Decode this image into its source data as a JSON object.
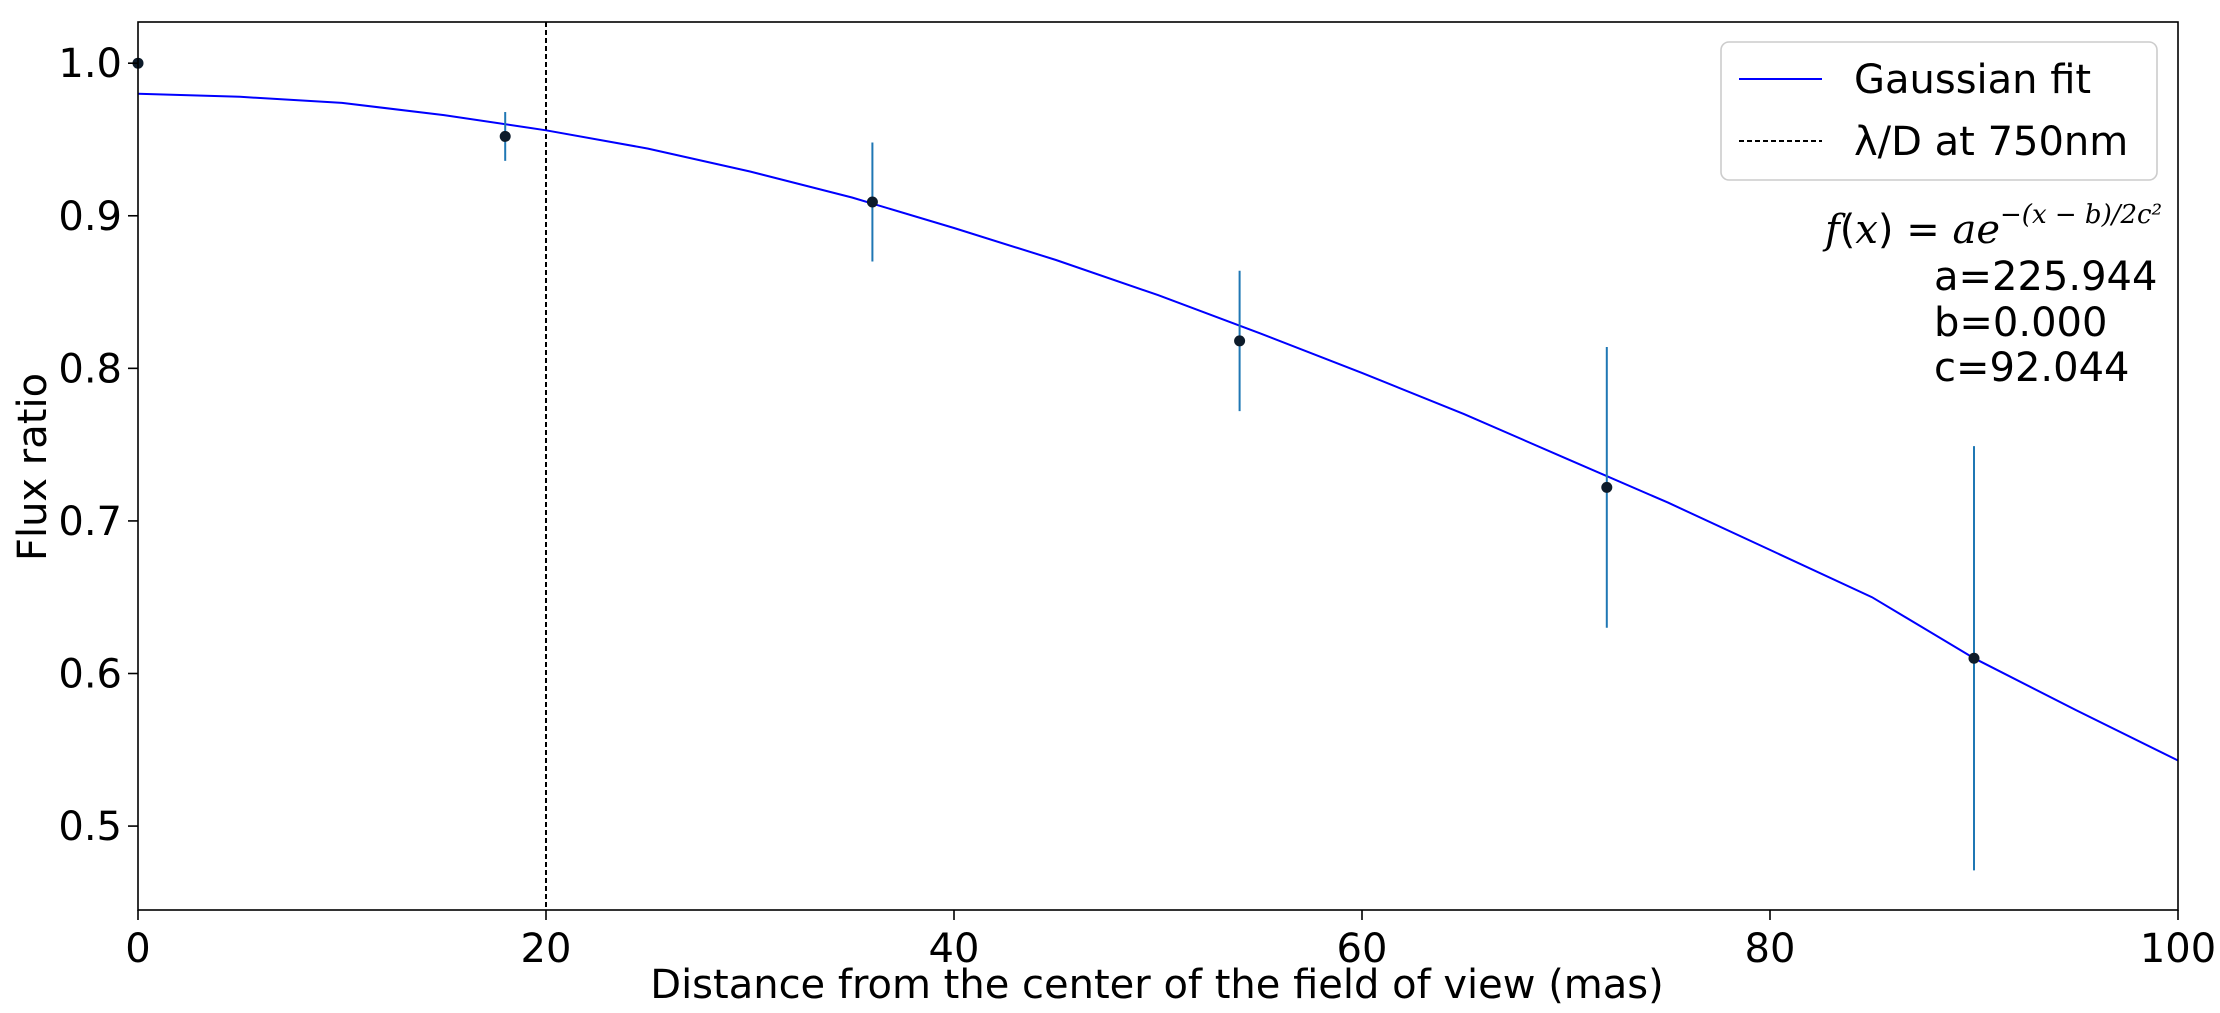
{
  "chart_data": {
    "type": "scatter",
    "xlabel": "Distance from the center of the field of view (mas)",
    "ylabel": "Flux ratio",
    "xlim": [
      0,
      100
    ],
    "ylim": [
      0.445,
      1.027
    ],
    "x_ticks": [
      0,
      20,
      40,
      60,
      80,
      100
    ],
    "x_tick_labels": [
      "0",
      "20",
      "40",
      "60",
      "80",
      "100"
    ],
    "y_ticks": [
      0.5,
      0.6,
      0.7,
      0.8,
      0.9,
      1.0
    ],
    "y_tick_labels": [
      "0.5",
      "0.6",
      "0.7",
      "0.8",
      "0.9",
      "1.0"
    ],
    "grid": false,
    "legend_position": "top-right",
    "series": [
      {
        "name": "Gaussian fit",
        "kind": "line",
        "color": "#0000ff",
        "x": [
          0,
          5,
          10,
          15,
          20,
          25,
          30,
          35,
          40,
          45,
          50,
          55,
          60,
          65,
          70,
          75,
          80,
          85,
          90,
          95,
          100
        ],
        "y": [
          0.98,
          0.978,
          0.974,
          0.966,
          0.956,
          0.944,
          0.929,
          0.912,
          0.892,
          0.871,
          0.848,
          0.823,
          0.797,
          0.77,
          0.741,
          0.712,
          0.681,
          0.65,
          0.61,
          0.576,
          0.543
        ]
      },
      {
        "name": "λ/D at 750nm",
        "kind": "vline",
        "color": "#000000",
        "x": 20
      },
      {
        "kind": "errorbar",
        "marker_color": "#0d1b2a",
        "errorbar_color": "#1f77b4",
        "x": [
          0,
          18,
          36,
          54,
          72,
          90
        ],
        "y": [
          1.0,
          0.952,
          0.909,
          0.818,
          0.722,
          0.61
        ],
        "yerr": [
          0.0,
          0.016,
          0.039,
          0.046,
          0.092,
          0.139
        ]
      }
    ],
    "annotation": {
      "formula_fx": "f",
      "formula_x": "x",
      "formula_eq": " = ",
      "formula_a": "a",
      "formula_e": "e",
      "formula_exp": "−(x − b)/2c²",
      "params": [
        "a=225.944",
        "b=0.000",
        "c=92.044"
      ]
    }
  }
}
